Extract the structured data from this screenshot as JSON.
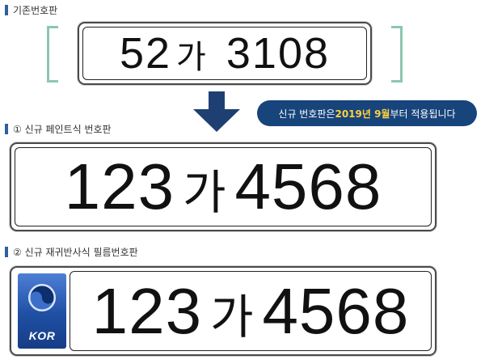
{
  "sections": {
    "existing": {
      "label": "기존번호판",
      "plate": {
        "prefix": "52",
        "hangul": "가",
        "number": "3108"
      }
    },
    "paint": {
      "label": "① 신규 페인트식 번호판",
      "plate": {
        "prefix": "123",
        "hangul": "가",
        "number": "4568"
      }
    },
    "film": {
      "label": "② 신규 재귀반사식 필름번호판",
      "plate": {
        "prefix": "123",
        "hangul": "가",
        "number": "4568"
      },
      "band_text": "KOR"
    }
  },
  "notice": {
    "before": "신규 번호판은 ",
    "year": "2019년 9월",
    "after": "부터 적용됩니다"
  },
  "colors": {
    "accent": "#2f5f9e",
    "notice_bg": "#17447a",
    "highlight": "#ffd23f",
    "bracket": "#8cc7ad",
    "band": "#1f4fa3"
  },
  "icons": {
    "arrow": "down-arrow-icon",
    "emblem": "taegeuk-emblem-icon"
  }
}
